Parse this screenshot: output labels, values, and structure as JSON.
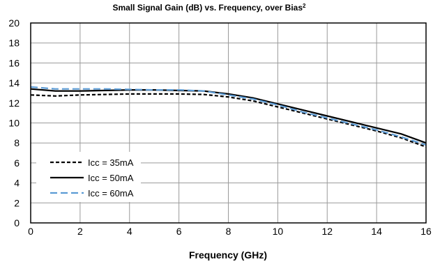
{
  "chart_data": {
    "type": "line",
    "title": "Small Signal Gain (dB) vs. Frequency, over Bias",
    "title_superscript": "2",
    "xlabel": "Frequency (GHz)",
    "ylabel": "",
    "xlim": [
      0,
      16
    ],
    "ylim": [
      0,
      20
    ],
    "xticks": [
      "0",
      "2",
      "4",
      "6",
      "8",
      "10",
      "12",
      "14",
      "16"
    ],
    "yticks": [
      "0",
      "2",
      "4",
      "6",
      "8",
      "10",
      "12",
      "14",
      "16",
      "18",
      "20"
    ],
    "grid": true,
    "legend_position": "bottom-left",
    "series": [
      {
        "name": "Icc = 35mA",
        "color": "#000000",
        "dash": "dashed",
        "x": [
          0,
          1,
          2,
          3,
          4,
          5,
          6,
          7,
          8,
          9,
          10,
          11,
          12,
          13,
          14,
          15,
          16
        ],
        "y": [
          12.8,
          12.7,
          12.8,
          12.85,
          12.9,
          12.9,
          12.9,
          12.85,
          12.6,
          12.2,
          11.6,
          11.0,
          10.4,
          9.8,
          9.2,
          8.5,
          7.6
        ]
      },
      {
        "name": "Icc = 50mA",
        "color": "#000000",
        "dash": "solid",
        "x": [
          0,
          1,
          2,
          3,
          4,
          5,
          6,
          7,
          8,
          9,
          10,
          11,
          12,
          13,
          14,
          15,
          16
        ],
        "y": [
          13.4,
          13.2,
          13.2,
          13.25,
          13.3,
          13.3,
          13.25,
          13.2,
          12.9,
          12.5,
          11.9,
          11.3,
          10.7,
          10.1,
          9.5,
          8.9,
          8.0
        ]
      },
      {
        "name": "Icc = 60mA",
        "color": "#5B9BD5",
        "dash": "longdash",
        "x": [
          0,
          1,
          2,
          3,
          4,
          5,
          6,
          7,
          8,
          9,
          10,
          11,
          12,
          13,
          14,
          15,
          16
        ],
        "y": [
          13.6,
          13.4,
          13.4,
          13.4,
          13.35,
          13.3,
          13.3,
          13.2,
          12.8,
          12.4,
          11.8,
          11.1,
          10.5,
          9.9,
          9.3,
          8.6,
          7.8
        ]
      }
    ]
  }
}
